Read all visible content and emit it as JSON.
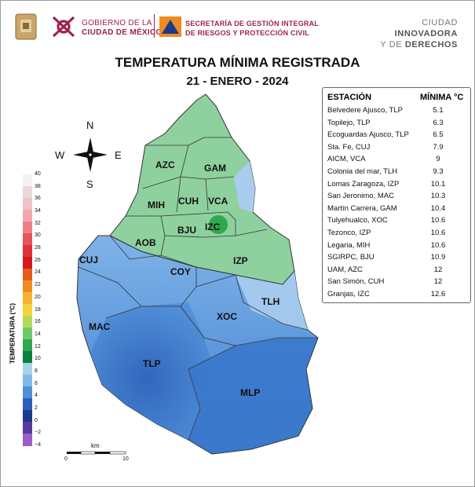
{
  "header": {
    "gob_line1": "GOBIERNO DE LA",
    "gob_line2": "CIUDAD DE MÉXICO",
    "sec_line1": "SECRETARÍA DE GESTIÓN INTEGRAL",
    "sec_line2": "DE RIESGOS Y PROTECCIÓN CIVIL",
    "cdmx_line1a": "CIUDAD",
    "cdmx_line1b": "INNOVADORA",
    "cdmx_line2a": "Y DE",
    "cdmx_line2b": "DERECHOS"
  },
  "title": "TEMPERATURA MÍNIMA REGISTRADA",
  "date": "21 - ENERO - 2024",
  "table": {
    "col_station": "ESTACIÓN",
    "col_min": "MÍNIMA °C",
    "rows": [
      {
        "station": "Belvedere Ajusco, TLP",
        "value": "5.1"
      },
      {
        "station": "Topilejo, TLP",
        "value": "6.3"
      },
      {
        "station": "Ecoguardas Ajusco, TLP",
        "value": "6.5"
      },
      {
        "station": "Sta. Fe, CUJ",
        "value": "7.9"
      },
      {
        "station": "AICM, VCA",
        "value": "9"
      },
      {
        "station": "Colonia del mar, TLH",
        "value": "9.3"
      },
      {
        "station": "Lomas Zaragoza, IZP",
        "value": "10.1"
      },
      {
        "station": "San Jeronimo, MAC",
        "value": "10.3"
      },
      {
        "station": "Martín Carrera, GAM",
        "value": "10.4"
      },
      {
        "station": "Tulyehualco, XOC",
        "value": "10.6"
      },
      {
        "station": "Tezonco, IZP",
        "value": "10.6"
      },
      {
        "station": "Legaria, MIH",
        "value": "10.6"
      },
      {
        "station": "SGIRPC, BJU",
        "value": "10.9"
      },
      {
        "station": "UAM, AZC",
        "value": "12"
      },
      {
        "station": "San Simón, CUH",
        "value": "12"
      },
      {
        "station": "Granjas, IZC",
        "value": "12.6"
      }
    ]
  },
  "colorbar": {
    "title": "TEMPERATURA (°C)",
    "ticks": [
      "40",
      "38",
      "36",
      "34",
      "32",
      "30",
      "28",
      "26",
      "24",
      "22",
      "20",
      "18",
      "16",
      "14",
      "12",
      "10",
      "8",
      "6",
      "4",
      "2",
      "0",
      "−2",
      "−4"
    ],
    "colors": [
      "#f2f2f2",
      "#e9d9da",
      "#f0c3c6",
      "#f2a8ac",
      "#ef7f86",
      "#e8525c",
      "#e03238",
      "#d7191c",
      "#e45b1e",
      "#f08b22",
      "#f7b32e",
      "#f5d33a",
      "#b6d957",
      "#6fc96a",
      "#2fa84f",
      "#0b7f3c",
      "#a6d3ea",
      "#80b9e6",
      "#4f8fd8",
      "#2c5fb8",
      "#1b3a8c",
      "#5a3a9a",
      "#9b5ec8"
    ]
  },
  "compass": {
    "n": "N",
    "s": "S",
    "e": "E",
    "w": "W"
  },
  "scale": {
    "unit": "km",
    "start": "0",
    "end": "10"
  },
  "alcaldias": [
    "AZC",
    "GAM",
    "MIH",
    "CUH",
    "VCA",
    "IZC",
    "BJU",
    "AOB",
    "IZP",
    "CUJ",
    "COY",
    "TLH",
    "XOC",
    "MAC",
    "TLP",
    "MLP"
  ]
}
